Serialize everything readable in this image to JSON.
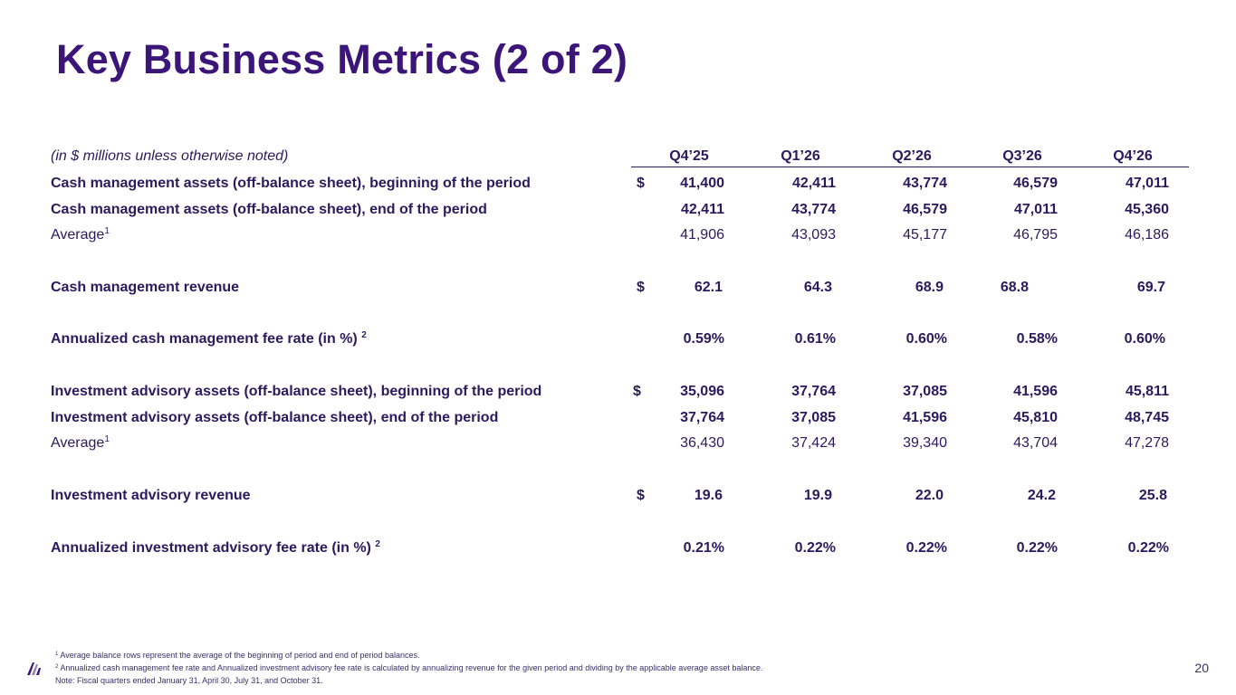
{
  "title": "Key Business Metrics (2 of 2)",
  "table": {
    "unit_note": "(in $ millions unless otherwise noted)",
    "quarters": [
      "Q4’25",
      "Q1’26",
      "Q2’26",
      "Q3’26",
      "Q4’26"
    ],
    "rows": [
      {
        "label": "Cash management assets (off-balance sheet), beginning of the period",
        "sup": "",
        "dollar": "$",
        "values": [
          "41,400",
          "42,411",
          "43,774",
          "46,579",
          "47,011"
        ]
      },
      {
        "label": "Cash management assets (off-balance sheet), end of the period",
        "sup": "",
        "dollar": "",
        "values": [
          "42,411",
          "43,774",
          "46,579",
          "47,011",
          "45,360"
        ]
      },
      {
        "label": "Average",
        "sup": "1",
        "dollar": "",
        "values": [
          "41,906",
          "43,093",
          "45,177",
          "46,795",
          "46,186"
        ]
      },
      {
        "label": "Cash management revenue",
        "sup": "",
        "dollar": "$",
        "values": [
          "62.1",
          "64.3",
          "68.9",
          "68.8",
          "69.7"
        ]
      },
      {
        "label": "Annualized cash management fee rate (in %)",
        "sup": "2",
        "dollar": "",
        "values": [
          "0.59%",
          "0.61%",
          "0.60%",
          "0.58%",
          "0.60%"
        ]
      },
      {
        "label": "Investment advisory assets (off-balance sheet), beginning of the period",
        "sup": "",
        "dollar": "$",
        "values": [
          "35,096",
          "37,764",
          "37,085",
          "41,596",
          "45,811"
        ]
      },
      {
        "label": "Investment advisory assets (off-balance sheet), end of the period",
        "sup": "",
        "dollar": "",
        "values": [
          "37,764",
          "37,085",
          "41,596",
          "45,810",
          "48,745"
        ]
      },
      {
        "label": "Average",
        "sup": "1",
        "dollar": "",
        "values": [
          "36,430",
          "37,424",
          "39,340",
          "43,704",
          "47,278"
        ]
      },
      {
        "label": "Investment advisory revenue",
        "sup": "",
        "dollar": "$",
        "values": [
          "19.6",
          "19.9",
          "22.0",
          "24.2",
          "25.8"
        ]
      },
      {
        "label": "Annualized investment advisory fee rate (in %)",
        "sup": "2",
        "dollar": "",
        "values": [
          "0.21%",
          "0.22%",
          "0.22%",
          "0.22%",
          "0.22%"
        ]
      }
    ]
  },
  "footnotes": {
    "note1_marker": "1",
    "note1": "Average balance rows represent the average of the beginning of period and end of period balances.",
    "note2_marker": "2",
    "note2": "Annualized cash management fee rate and Annualized investment advisory fee rate is calculated by annualizing revenue for the given period and dividing by the applicable average asset balance.",
    "note3": "Note: Fiscal quarters ended January 31, April 30, July 31, and October 31."
  },
  "page_number": "20",
  "colors": {
    "title": "#3b1577",
    "text": "#2a1a5e"
  },
  "icons": {
    "logo": "company-logo-icon"
  }
}
